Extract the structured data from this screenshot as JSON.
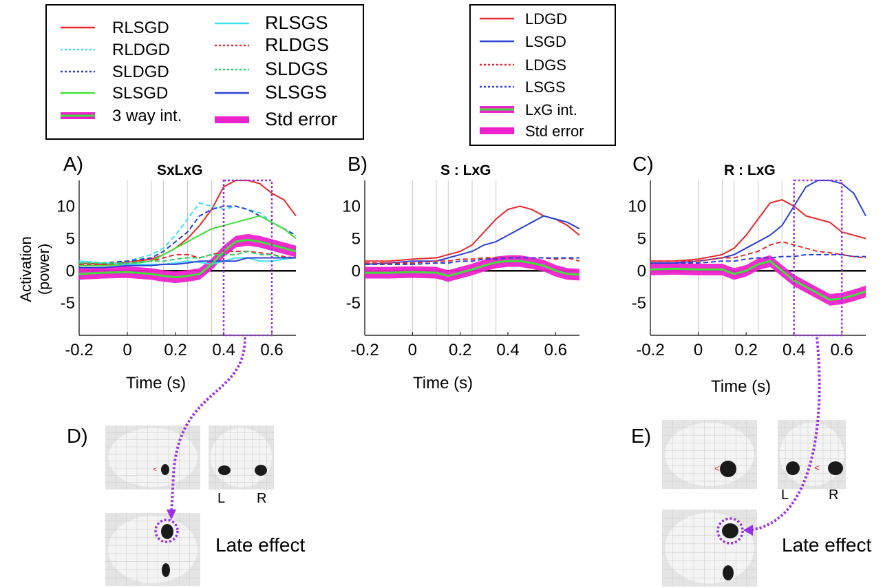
{
  "legend_left": {
    "items": [
      {
        "label": "RLSGD",
        "color": "#e8262b",
        "style": "solid"
      },
      {
        "label": "RLDGD",
        "color": "#3ae0ee",
        "style": "dotted"
      },
      {
        "label": "SLDGD",
        "color": "#2b3fd6",
        "style": "dotted"
      },
      {
        "label": "SLSGD",
        "color": "#3ee23a",
        "style": "solid"
      },
      {
        "label": "3 way int.",
        "color": "#ee22cc",
        "style": "band-line"
      },
      {
        "label": "RLSGS",
        "color": "#3ae0ee",
        "style": "solid"
      },
      {
        "label": "RLDGS",
        "color": "#e8262b",
        "style": "dotted"
      },
      {
        "label": "SLDGS",
        "color": "#22d46a",
        "style": "dotted"
      },
      {
        "label": "SLSGS",
        "color": "#2b3fd6",
        "style": "solid"
      },
      {
        "label": "Std error",
        "color": "#ee22cc",
        "style": "band"
      }
    ]
  },
  "legend_right": {
    "items": [
      {
        "label": "LDGD",
        "color": "#e8262b",
        "style": "solid"
      },
      {
        "label": "LSGD",
        "color": "#2b3fd6",
        "style": "solid"
      },
      {
        "label": "LDGS",
        "color": "#e8262b",
        "style": "dotted"
      },
      {
        "label": "LSGS",
        "color": "#2b3fd6",
        "style": "dotted"
      },
      {
        "label": "LxG int.",
        "color": "#ee22cc",
        "style": "band-line"
      },
      {
        "label": "Std error",
        "color": "#ee22cc",
        "style": "band"
      }
    ]
  },
  "panels": [
    {
      "letter": "A)",
      "title": "SxLxG",
      "xlabel": "Time (s)",
      "ylabel_line1": "Activation",
      "ylabel_line2": "(power)"
    },
    {
      "letter": "B)",
      "title": "S : LxG",
      "xlabel": "Time (s)"
    },
    {
      "letter": "C)",
      "title": "R : LxG",
      "xlabel": "Time (s)"
    }
  ],
  "brains": {
    "d_letter": "D)",
    "e_letter": "E)",
    "left": "L",
    "right": "R",
    "late_effect": "Late effect"
  },
  "colors": {
    "red": "#e8262b",
    "blue": "#2b3fd6",
    "cyan": "#3ae0ee",
    "green": "#3ee23a",
    "magenta": "#ee22cc",
    "purple": "#9b30e8"
  },
  "chart_data": [
    {
      "type": "line",
      "title": "SxLxG",
      "xlabel": "Time (s)",
      "ylabel": "Activation (power)",
      "xlim": [
        -0.2,
        0.7
      ],
      "ylim": [
        -10,
        14
      ],
      "xticks": [
        "-0.2",
        "0",
        "0.2",
        "0.4",
        "0.6"
      ],
      "yticks": [
        "10",
        "5",
        "0",
        "-5"
      ],
      "highlight_window": [
        0.4,
        0.6
      ],
      "x": [
        -0.2,
        -0.1,
        0,
        0.1,
        0.15,
        0.2,
        0.25,
        0.3,
        0.35,
        0.4,
        0.45,
        0.5,
        0.55,
        0.6,
        0.65,
        0.7
      ],
      "series": [
        {
          "name": "RLSGD",
          "values": [
            1.2,
            1.0,
            1.3,
            1.8,
            2.5,
            3.5,
            5.0,
            7.0,
            9.5,
            13.0,
            14.0,
            14.0,
            13.5,
            12.0,
            11.0,
            8.5
          ]
        },
        {
          "name": "RLDGD",
          "values": [
            1.5,
            1.2,
            1.5,
            2.5,
            3.5,
            5.5,
            8.0,
            10.5,
            10.0,
            9.5,
            10.0,
            9.5,
            9.0,
            7.5,
            6.5,
            5.5
          ]
        },
        {
          "name": "SLDGD",
          "values": [
            1.0,
            1.2,
            1.5,
            2.0,
            3.0,
            4.5,
            6.0,
            8.5,
            9.5,
            10.0,
            10.0,
            9.5,
            8.5,
            7.5,
            6.5,
            5.5
          ]
        },
        {
          "name": "SLSGD",
          "values": [
            0.8,
            0.8,
            1.0,
            1.5,
            2.5,
            3.5,
            4.5,
            5.5,
            6.5,
            7.0,
            7.5,
            8.0,
            8.5,
            7.5,
            6.5,
            5.0
          ]
        },
        {
          "name": "RLSGS",
          "values": [
            1.5,
            1.2,
            1.0,
            1.0,
            1.0,
            1.2,
            1.5,
            1.3,
            1.0,
            1.5,
            2.0,
            2.0,
            1.5,
            1.5,
            1.8,
            2.0
          ]
        },
        {
          "name": "RLDGS",
          "values": [
            1.0,
            1.0,
            1.2,
            1.5,
            2.0,
            2.5,
            2.5,
            2.0,
            2.5,
            3.0,
            3.0,
            3.0,
            2.8,
            2.5,
            2.2,
            2.0
          ]
        },
        {
          "name": "SLDGS",
          "values": [
            1.2,
            1.2,
            1.2,
            1.5,
            1.5,
            1.8,
            2.0,
            2.0,
            2.5,
            2.5,
            2.5,
            3.0,
            2.5,
            2.5,
            2.0,
            2.0
          ]
        },
        {
          "name": "SLSGS",
          "values": [
            0.5,
            0.5,
            0.8,
            0.8,
            1.0,
            1.0,
            1.2,
            1.5,
            1.5,
            1.5,
            1.5,
            2.0,
            2.0,
            2.0,
            2.0,
            2.0
          ]
        },
        {
          "name": "3 way int.",
          "values": [
            -0.5,
            -0.3,
            -0.2,
            -0.5,
            -0.8,
            -1.0,
            -0.8,
            -0.5,
            1.0,
            3.0,
            4.5,
            4.8,
            4.5,
            4.0,
            3.5,
            3.0
          ]
        }
      ]
    },
    {
      "type": "line",
      "title": "S : LxG",
      "xlabel": "Time (s)",
      "xlim": [
        -0.2,
        0.7
      ],
      "ylim": [
        -10,
        14
      ],
      "xticks": [
        "-0.2",
        "0",
        "0.2",
        "0.4",
        "0.6"
      ],
      "yticks": [
        "10",
        "5",
        "0",
        "-5"
      ],
      "x": [
        -0.2,
        -0.1,
        0,
        0.1,
        0.15,
        0.2,
        0.25,
        0.3,
        0.35,
        0.4,
        0.45,
        0.5,
        0.55,
        0.6,
        0.65,
        0.7
      ],
      "series": [
        {
          "name": "LDGD",
          "values": [
            1.5,
            1.5,
            1.8,
            2.0,
            2.5,
            3.0,
            4.0,
            6.0,
            8.0,
            9.5,
            10.0,
            9.5,
            8.5,
            8.0,
            7.0,
            5.5
          ]
        },
        {
          "name": "LSGD",
          "values": [
            1.0,
            1.2,
            1.5,
            1.5,
            2.0,
            2.5,
            3.0,
            4.0,
            4.5,
            5.5,
            6.5,
            7.5,
            8.5,
            8.0,
            7.5,
            6.5
          ]
        },
        {
          "name": "LDGS",
          "values": [
            1.2,
            1.2,
            1.2,
            1.5,
            1.5,
            1.8,
            1.8,
            2.0,
            2.0,
            2.0,
            2.0,
            2.0,
            2.0,
            1.8,
            2.0,
            1.5
          ]
        },
        {
          "name": "LSGS",
          "values": [
            1.0,
            1.0,
            1.0,
            1.2,
            1.2,
            1.5,
            1.5,
            1.8,
            1.8,
            2.0,
            2.0,
            2.0,
            2.0,
            2.0,
            2.0,
            2.0
          ]
        },
        {
          "name": "LxG int.",
          "values": [
            -0.3,
            -0.3,
            -0.2,
            -0.3,
            -0.8,
            -0.3,
            0.2,
            0.8,
            1.3,
            1.5,
            1.5,
            1.2,
            0.8,
            0.0,
            -0.5,
            -0.6
          ]
        }
      ]
    },
    {
      "type": "line",
      "title": "R : LxG",
      "xlabel": "Time (s)",
      "xlim": [
        -0.2,
        0.7
      ],
      "ylim": [
        -10,
        14
      ],
      "xticks": [
        "-0.2",
        "0",
        "0.2",
        "0.4",
        "0.6"
      ],
      "yticks": [
        "10",
        "5",
        "0",
        "-5"
      ],
      "highlight_window": [
        0.4,
        0.6
      ],
      "x": [
        -0.2,
        -0.1,
        0,
        0.1,
        0.15,
        0.2,
        0.25,
        0.3,
        0.35,
        0.4,
        0.45,
        0.5,
        0.55,
        0.6,
        0.65,
        0.7
      ],
      "series": [
        {
          "name": "LDGD",
          "values": [
            1.5,
            1.5,
            1.8,
            2.5,
            3.5,
            5.5,
            8.0,
            10.5,
            11.0,
            10.0,
            8.5,
            8.0,
            7.5,
            6.0,
            5.5,
            5.0
          ]
        },
        {
          "name": "LSGD",
          "values": [
            1.2,
            1.2,
            1.5,
            2.0,
            2.5,
            3.5,
            4.5,
            5.5,
            7.0,
            10.0,
            13.0,
            14.0,
            14.0,
            13.5,
            12.0,
            8.5
          ]
        },
        {
          "name": "LDGS",
          "values": [
            1.5,
            1.5,
            1.5,
            2.0,
            2.0,
            2.5,
            3.0,
            4.0,
            4.5,
            4.0,
            3.5,
            3.0,
            2.8,
            2.5,
            2.2,
            2.0
          ]
        },
        {
          "name": "LSGS",
          "values": [
            1.2,
            1.2,
            1.2,
            1.5,
            1.5,
            1.8,
            2.0,
            2.0,
            2.2,
            2.2,
            2.5,
            2.5,
            2.5,
            2.5,
            2.2,
            2.2
          ]
        },
        {
          "name": "LxG int.",
          "values": [
            0.2,
            0.3,
            0.2,
            0.2,
            -0.5,
            0.0,
            1.0,
            1.5,
            0.0,
            -1.5,
            -2.5,
            -3.5,
            -4.5,
            -4.3,
            -3.8,
            -3.2
          ]
        }
      ]
    }
  ]
}
